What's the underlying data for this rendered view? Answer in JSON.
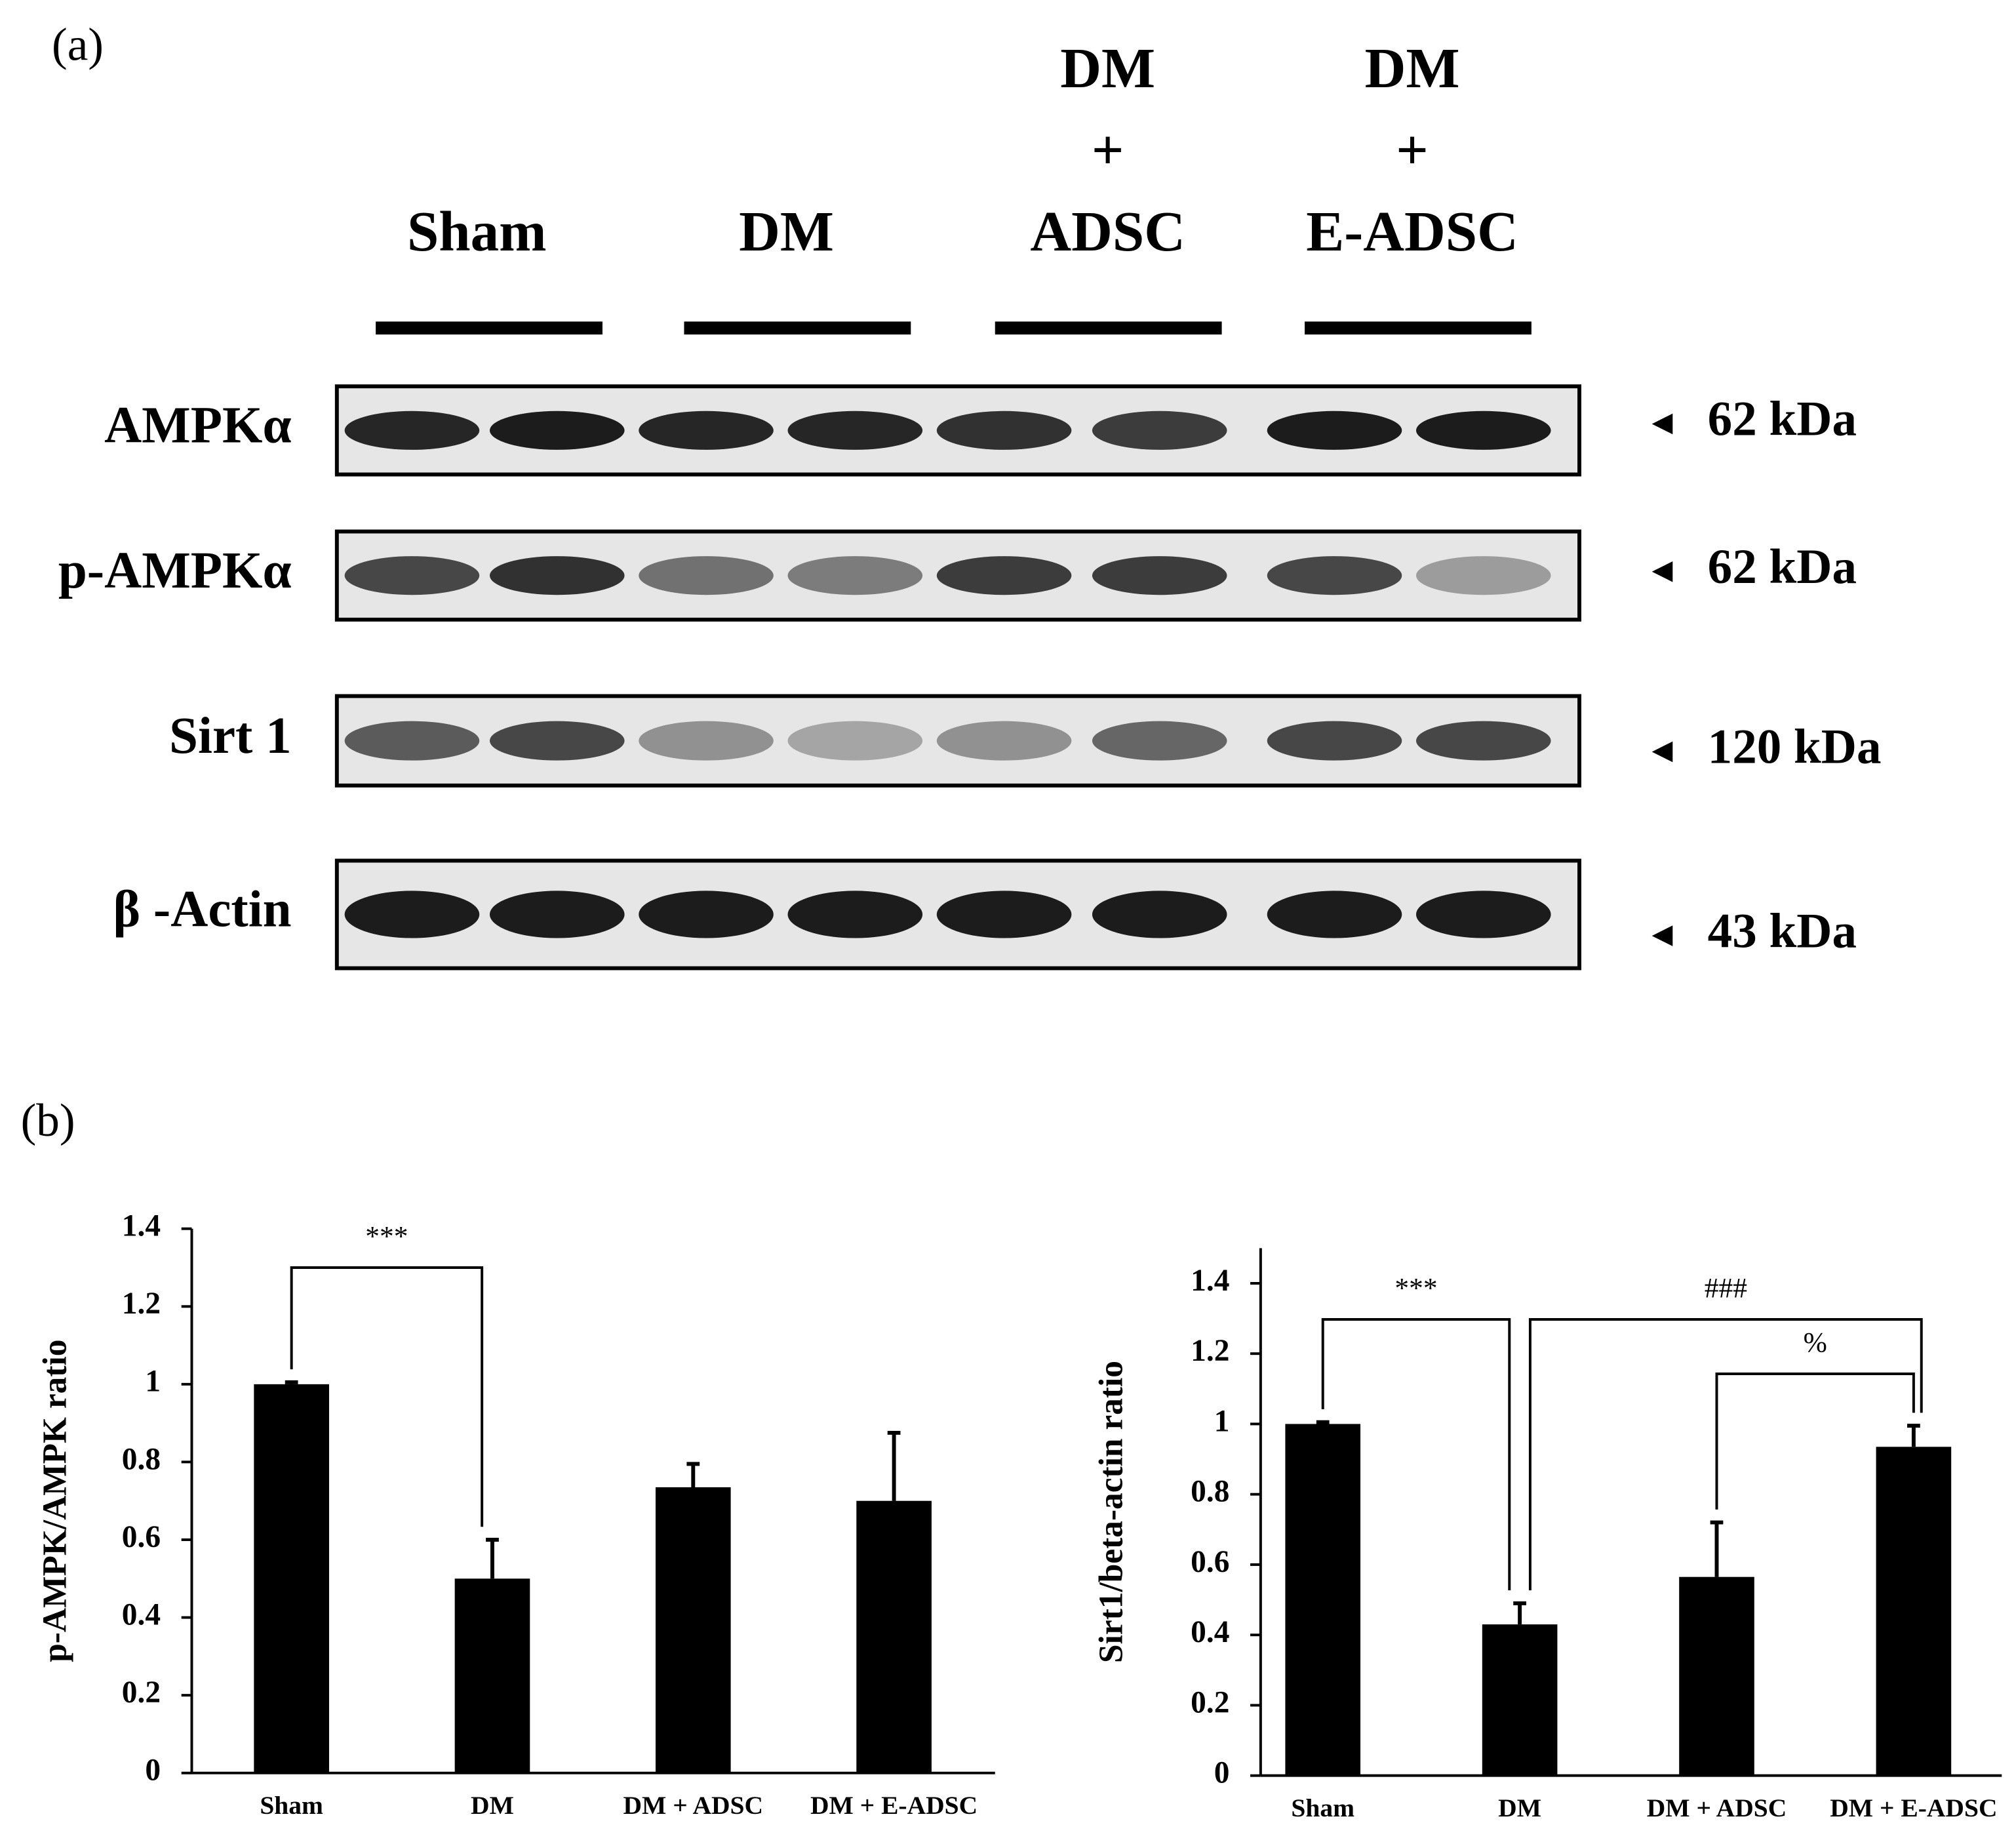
{
  "panel_a_label": "(a)",
  "panel_b_label": "(b)",
  "blot": {
    "groups": [
      {
        "lines": [
          "Sham"
        ]
      },
      {
        "lines": [
          "DM"
        ]
      },
      {
        "lines": [
          "DM",
          "+",
          "ADSC"
        ]
      },
      {
        "lines": [
          "DM",
          "+",
          "E-ADSC"
        ]
      }
    ],
    "rows": [
      {
        "label": "AMPKα",
        "size": "62 kDa"
      },
      {
        "label": "p-AMPKα",
        "size": "62 kDa"
      },
      {
        "label": "Sirt 1",
        "size": "120 kDa"
      },
      {
        "label": "β -Actin",
        "size": "43 kDa"
      }
    ]
  },
  "chart_data": [
    {
      "type": "bar",
      "y_label": "p-AMPK/AMPK ratio",
      "categories": [
        "Sham",
        "DM",
        "DM + ADSC",
        "DM + E-ADSC"
      ],
      "values": [
        1.0,
        0.5,
        0.735,
        0.7
      ],
      "errors": [
        0.005,
        0.1,
        0.06,
        0.175
      ],
      "color": "#000000",
      "ylim": [
        0,
        1.4
      ],
      "yticks": [
        0,
        0.2,
        0.4,
        0.6,
        0.8,
        1,
        1.2,
        1.4
      ],
      "annotations": [
        {
          "text": "***",
          "between": [
            "Sham",
            "DM"
          ]
        }
      ]
    },
    {
      "type": "bar",
      "y_label": "Sirt1/beta-actin ratio",
      "categories": [
        "Sham",
        "DM",
        "DM + ADSC",
        "DM + E-ADSC"
      ],
      "values": [
        1.0,
        0.43,
        0.565,
        0.935
      ],
      "errors": [
        0.005,
        0.06,
        0.155,
        0.06
      ],
      "color": "#000000",
      "ylim": [
        0,
        1.5
      ],
      "yticks": [
        0,
        0.2,
        0.4,
        0.6,
        0.8,
        1,
        1.2,
        1.4
      ],
      "annotations": [
        {
          "text": "***",
          "between": [
            "Sham",
            "DM"
          ]
        },
        {
          "text": "###",
          "between": [
            "DM",
            "DM + E-ADSC"
          ]
        },
        {
          "text": "%",
          "between": [
            "DM + ADSC",
            "DM + E-ADSC"
          ]
        }
      ]
    }
  ]
}
